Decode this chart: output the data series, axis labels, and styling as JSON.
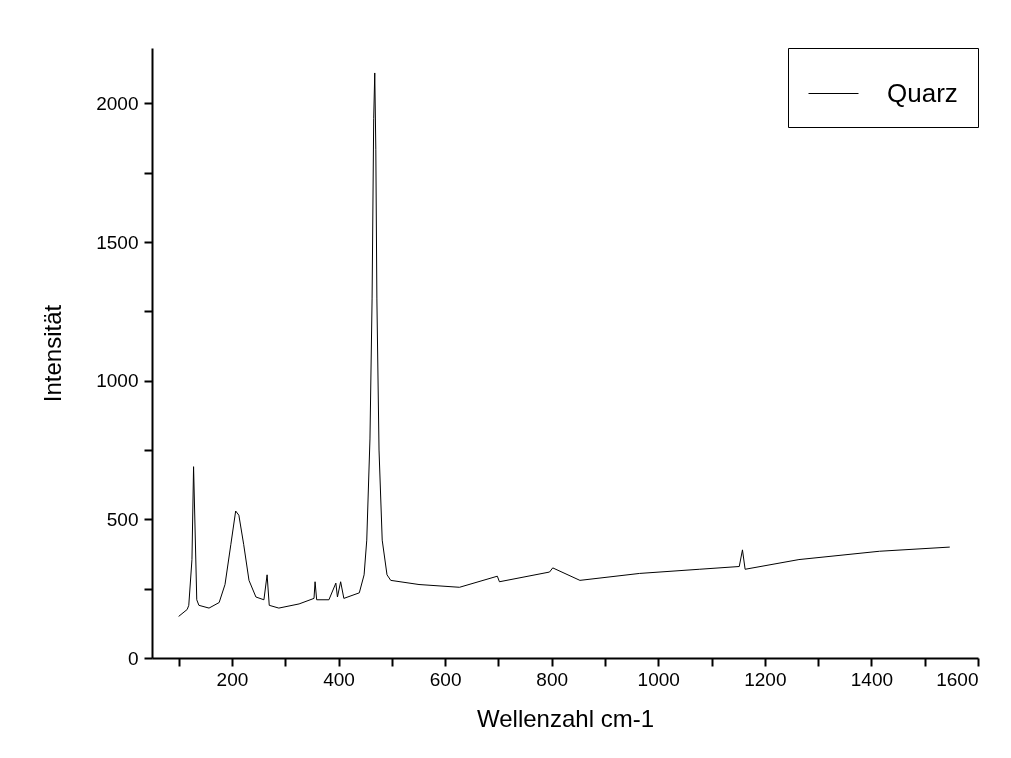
{
  "chart_data": {
    "type": "line",
    "xlabel": "Wellenzahl cm-1",
    "ylabel": "Intensität",
    "xlim": [
      50,
      1600
    ],
    "ylim": [
      0,
      2200
    ],
    "xticks": [
      {
        "value": 100,
        "label": null
      },
      200,
      {
        "value": 300,
        "label": null
      },
      400,
      {
        "value": 500,
        "label": null
      },
      600,
      {
        "value": 700,
        "label": null
      },
      800,
      {
        "value": 900,
        "label": null
      },
      1000,
      {
        "value": 1100,
        "label": null
      },
      1200,
      {
        "value": 1300,
        "label": null
      },
      1400,
      {
        "value": 1500,
        "label": null
      },
      1600
    ],
    "yticks": [
      0,
      {
        "value": 250,
        "label": null
      },
      500,
      {
        "value": 750,
        "label": null
      },
      1000,
      {
        "value": 1250,
        "label": null
      },
      1500,
      {
        "value": 1750,
        "label": null
      },
      2000
    ],
    "grid": false,
    "legend": "top right",
    "line_style": "solid",
    "x": [
      100,
      116,
      119,
      125,
      128,
      134,
      138,
      157,
      176,
      187,
      198,
      207,
      213,
      222,
      232,
      245,
      260,
      266,
      270,
      288,
      326,
      354,
      356,
      359,
      382,
      395,
      398,
      404,
      410,
      439,
      448,
      453,
      459,
      463,
      466,
      468,
      470,
      472,
      476,
      482,
      491,
      498,
      551,
      627,
      698,
      702,
      796,
      802,
      853,
      965,
      1077,
      1152,
      1158,
      1163,
      1264,
      1415,
      1547
    ],
    "series": [
      {
        "name": "Quarz",
        "color": "#000000",
        "values": [
          150,
          175,
          190,
          355,
          690,
          210,
          190,
          180,
          200,
          265,
          410,
          530,
          515,
          410,
          280,
          220,
          210,
          300,
          190,
          180,
          195,
          215,
          275,
          210,
          210,
          270,
          220,
          275,
          215,
          235,
          300,
          425,
          790,
          1295,
          1945,
          2110,
          1835,
          1295,
          750,
          425,
          300,
          280,
          265,
          255,
          295,
          275,
          310,
          325,
          280,
          305,
          320,
          330,
          390,
          320,
          355,
          385,
          400
        ]
      }
    ]
  }
}
